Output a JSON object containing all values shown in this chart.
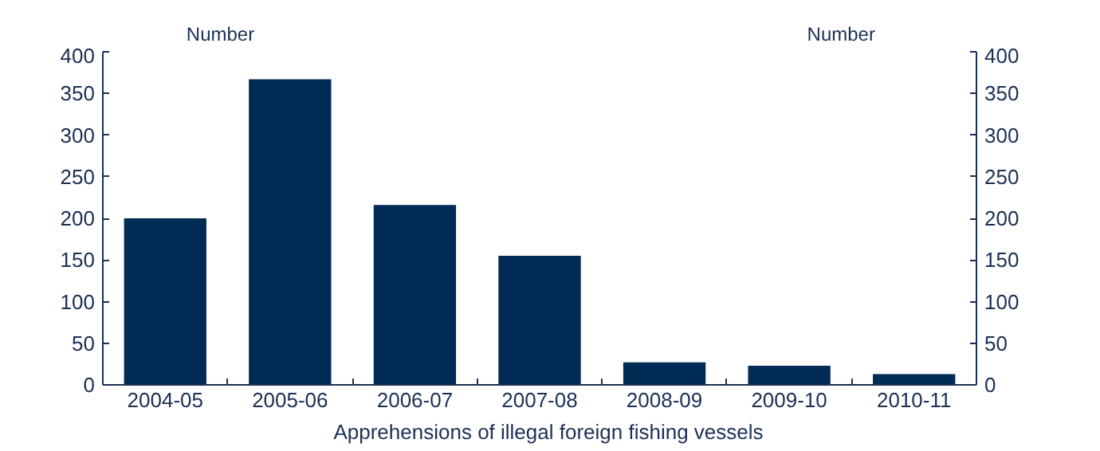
{
  "chart_data": {
    "type": "bar",
    "ylabel": "Number",
    "y2label": "Number",
    "categories": [
      "2004-05",
      "2005-06",
      "2006-07",
      "2007-08",
      "2008-09",
      "2009-10",
      "2010-11"
    ],
    "series": [
      {
        "name": "Apprehensions of illegal foreign fishing vessels",
        "color": "#002b54",
        "values": [
          200,
          367,
          216,
          155,
          27,
          23,
          13
        ]
      }
    ],
    "ylim": [
      0,
      400
    ],
    "yticks": [
      0,
      50,
      100,
      150,
      200,
      250,
      300,
      350,
      400
    ],
    "y2lim": [
      0,
      400
    ],
    "y2ticks": [
      0,
      50,
      100,
      150,
      200,
      250,
      300,
      350,
      400
    ],
    "legend": "bottom"
  }
}
